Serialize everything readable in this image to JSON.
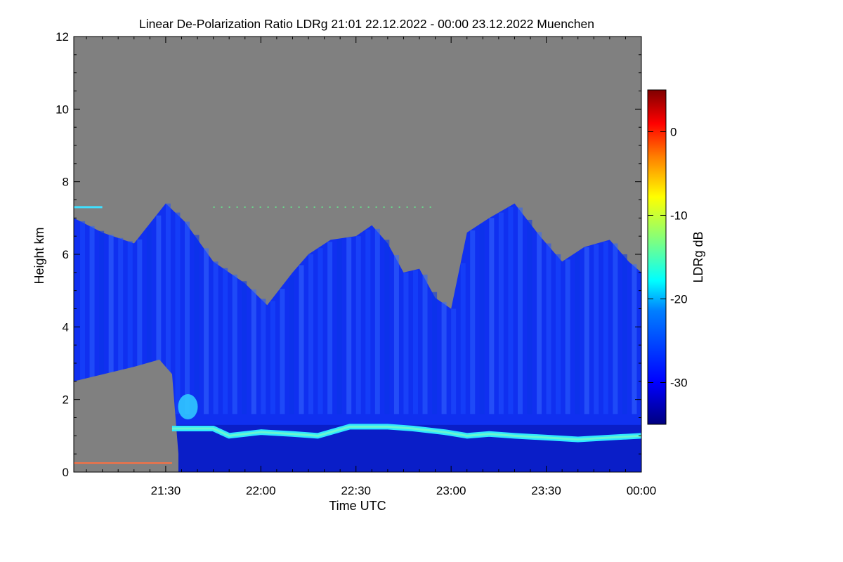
{
  "chart_data": {
    "type": "heatmap",
    "title": "Linear De-Polarization Ratio LDRg   21:01 22.12.2022 - 00:00 23.12.2022 Muenchen",
    "xlabel": "Time UTC",
    "ylabel": "Height km",
    "x_ticks": [
      "21:30",
      "22:00",
      "22:30",
      "23:00",
      "23:30",
      "00:00"
    ],
    "x_tick_minutes": [
      30,
      60,
      90,
      120,
      150,
      180
    ],
    "xlim_minutes": [
      1,
      180
    ],
    "ylim": [
      0,
      12
    ],
    "y_ticks": [
      0,
      2,
      4,
      6,
      8,
      10,
      12
    ],
    "colorbar": {
      "label": "LDRg dB",
      "range": [
        -35,
        5
      ],
      "ticks": [
        0,
        -10,
        -20,
        -30
      ],
      "colors": [
        "#00007f",
        "#0000ff",
        "#007fff",
        "#00ffff",
        "#7fff7f",
        "#ffff00",
        "#ff7f00",
        "#ff0000",
        "#7f0000"
      ]
    },
    "nodata_color": "#808080",
    "cloud_top_km": [
      [
        1,
        7.0
      ],
      [
        10,
        6.6
      ],
      [
        20,
        6.3
      ],
      [
        30,
        7.4
      ],
      [
        36,
        6.9
      ],
      [
        45,
        5.8
      ],
      [
        55,
        5.2
      ],
      [
        62,
        4.6
      ],
      [
        70,
        5.5
      ],
      [
        75,
        6.0
      ],
      [
        82,
        6.4
      ],
      [
        90,
        6.5
      ],
      [
        95,
        6.8
      ],
      [
        100,
        6.3
      ],
      [
        105,
        5.5
      ],
      [
        110,
        5.6
      ],
      [
        115,
        4.8
      ],
      [
        120,
        4.5
      ],
      [
        125,
        6.6
      ],
      [
        132,
        7.0
      ],
      [
        140,
        7.4
      ],
      [
        148,
        6.5
      ],
      [
        155,
        5.8
      ],
      [
        162,
        6.2
      ],
      [
        170,
        6.4
      ],
      [
        176,
        5.8
      ],
      [
        180,
        5.5
      ]
    ],
    "bright_layer_km": [
      [
        32,
        1.2
      ],
      [
        45,
        1.2
      ],
      [
        50,
        1.0
      ],
      [
        60,
        1.1
      ],
      [
        70,
        1.05
      ],
      [
        78,
        1.0
      ],
      [
        88,
        1.25
      ],
      [
        100,
        1.25
      ],
      [
        108,
        1.2
      ],
      [
        118,
        1.1
      ],
      [
        125,
        1.0
      ],
      [
        132,
        1.05
      ],
      [
        140,
        1.0
      ],
      [
        150,
        0.95
      ],
      [
        160,
        0.9
      ],
      [
        170,
        0.95
      ],
      [
        180,
        1.0
      ]
    ]
  }
}
